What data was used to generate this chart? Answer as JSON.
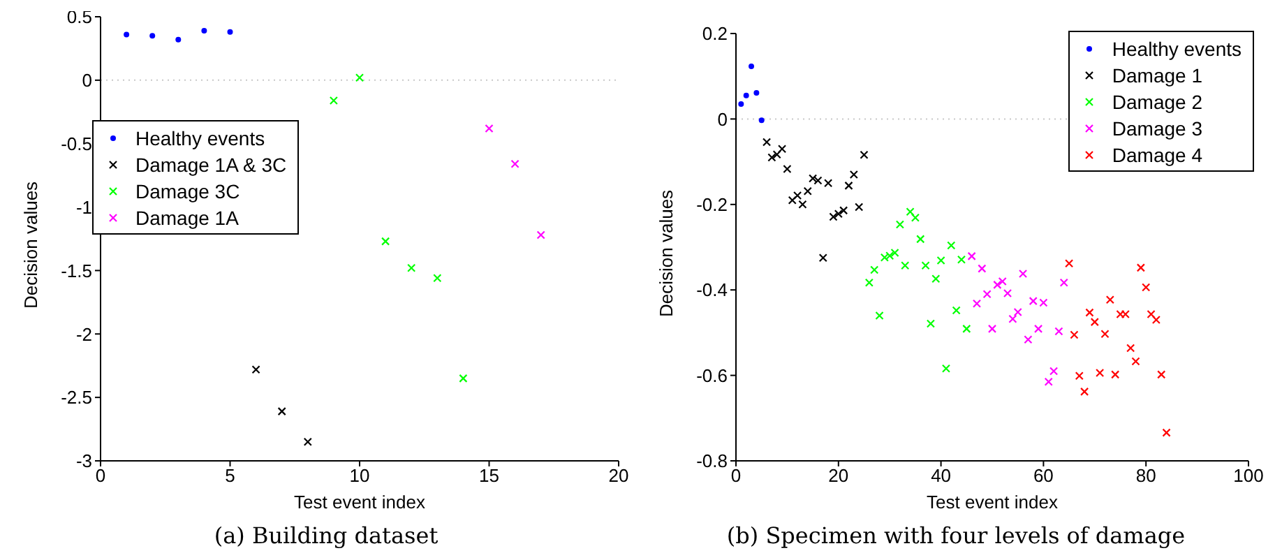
{
  "chart_data": [
    {
      "type": "scatter",
      "xlabel": "Test event index",
      "ylabel": "Decision values",
      "annotations": [
        "(a) Building dataset"
      ],
      "xlim": [
        0,
        20
      ],
      "xticks": [
        0,
        5,
        10,
        15,
        20
      ],
      "ylim": [
        -3,
        0.5
      ],
      "yticks": [
        -3,
        -2.5,
        -2,
        -1.5,
        -1,
        -0.5,
        0,
        0.5
      ],
      "grid": false,
      "legend": "left",
      "ref_lines": [
        {
          "axis": "y",
          "value": 0,
          "line_style": "dotted",
          "color": "#c8c8c8"
        }
      ],
      "series": [
        {
          "name": "Healthy events",
          "color": "#0000ff",
          "marker": "circle",
          "x": [
            1,
            2,
            3,
            4,
            5
          ],
          "values": [
            0.36,
            0.35,
            0.32,
            0.39,
            0.38
          ]
        },
        {
          "name": "Damage 1A & 3C",
          "color": "#000000",
          "marker": "cross",
          "x": [
            6,
            7,
            8
          ],
          "values": [
            -2.28,
            -2.61,
            -2.85
          ]
        },
        {
          "name": "Damage 3C",
          "color": "#00ff00",
          "marker": "cross",
          "x": [
            9,
            10,
            11,
            12,
            13,
            14
          ],
          "values": [
            -0.16,
            0.02,
            -1.27,
            -1.48,
            -1.56,
            -2.35
          ]
        },
        {
          "name": "Damage 1A",
          "color": "#ff00ff",
          "marker": "cross",
          "x": [
            15,
            16,
            17
          ],
          "values": [
            -0.38,
            -0.66,
            -1.22
          ]
        }
      ]
    },
    {
      "type": "scatter",
      "xlabel": "Test event index",
      "ylabel": "Decision values",
      "annotations": [
        "(b) Specimen with four levels of damage"
      ],
      "xlim": [
        0,
        100
      ],
      "xticks": [
        0,
        20,
        40,
        60,
        80,
        100
      ],
      "ylim": [
        -0.8,
        0.2
      ],
      "yticks": [
        -0.8,
        -0.6,
        -0.4,
        -0.2,
        0,
        0.2
      ],
      "grid": false,
      "legend": "top right",
      "ref_lines": [
        {
          "axis": "y",
          "value": 0,
          "line_style": "dotted",
          "color": "#c8c8c8"
        }
      ],
      "series": [
        {
          "name": "Healthy events",
          "color": "#0000ff",
          "marker": "circle",
          "x": [
            1,
            2,
            3,
            4,
            5
          ],
          "values": [
            0.035,
            0.055,
            0.123,
            0.061,
            -0.003
          ]
        },
        {
          "name": "Damage 1",
          "color": "#000000",
          "marker": "cross",
          "x": [
            6,
            7,
            8,
            9,
            10,
            11,
            12,
            13,
            14,
            15,
            16,
            17,
            18,
            19,
            20,
            21,
            22,
            23,
            24,
            25
          ],
          "values": [
            -0.054,
            -0.09,
            -0.083,
            -0.07,
            -0.117,
            -0.19,
            -0.179,
            -0.2,
            -0.169,
            -0.139,
            -0.144,
            -0.325,
            -0.15,
            -0.229,
            -0.222,
            -0.214,
            -0.156,
            -0.13,
            -0.206,
            -0.084
          ]
        },
        {
          "name": "Damage 2",
          "color": "#00ff00",
          "marker": "cross",
          "x": [
            26,
            27,
            28,
            29,
            30,
            31,
            32,
            33,
            34,
            35,
            36,
            37,
            38,
            39,
            40,
            41,
            42,
            43,
            44,
            45
          ],
          "values": [
            -0.383,
            -0.353,
            -0.46,
            -0.324,
            -0.32,
            -0.313,
            -0.247,
            -0.343,
            -0.217,
            -0.231,
            -0.281,
            -0.343,
            -0.479,
            -0.374,
            -0.331,
            -0.584,
            -0.296,
            -0.448,
            -0.329,
            -0.491
          ]
        },
        {
          "name": "Damage 3",
          "color": "#ff00ff",
          "marker": "cross",
          "x": [
            46,
            47,
            48,
            49,
            50,
            51,
            52,
            53,
            54,
            55,
            56,
            57,
            58,
            59,
            60,
            61,
            62,
            63,
            64
          ],
          "values": [
            -0.321,
            -0.432,
            -0.35,
            -0.41,
            -0.491,
            -0.388,
            -0.38,
            -0.408,
            -0.468,
            -0.452,
            -0.362,
            -0.516,
            -0.426,
            -0.491,
            -0.43,
            -0.615,
            -0.59,
            -0.497,
            -0.383
          ]
        },
        {
          "name": "Damage 4",
          "color": "#ff0000",
          "marker": "cross",
          "x": [
            65,
            66,
            67,
            68,
            69,
            70,
            71,
            72,
            73,
            74,
            75,
            76,
            77,
            78,
            79,
            80,
            81,
            82,
            83,
            84
          ],
          "values": [
            -0.338,
            -0.505,
            -0.601,
            -0.638,
            -0.453,
            -0.475,
            -0.594,
            -0.503,
            -0.423,
            -0.598,
            -0.457,
            -0.457,
            -0.536,
            -0.567,
            -0.348,
            -0.394,
            -0.457,
            -0.47,
            -0.598,
            -0.734
          ]
        }
      ]
    }
  ]
}
